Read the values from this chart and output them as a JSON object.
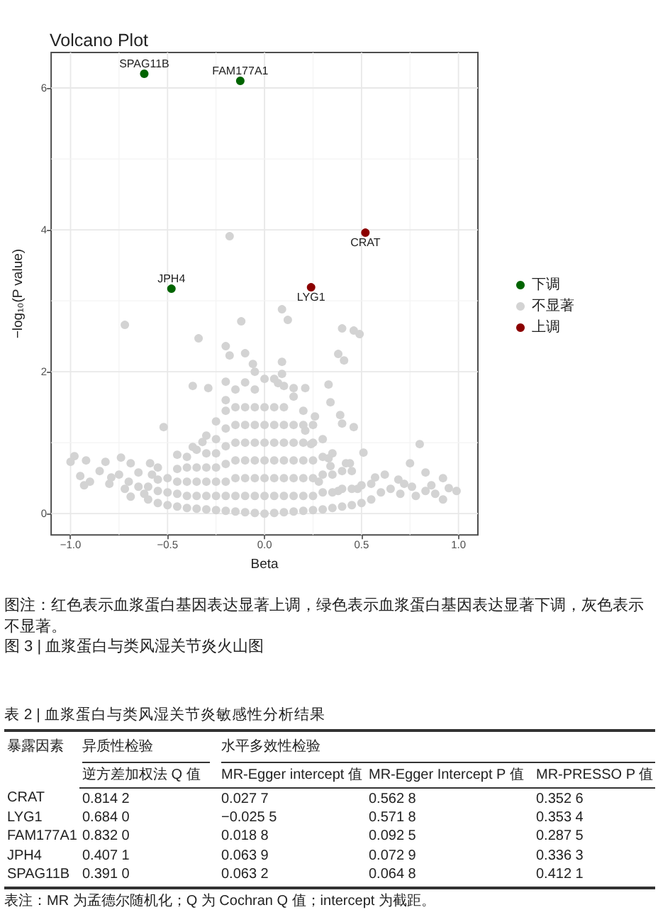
{
  "chart_data": [
    {
      "type": "scatter",
      "title": "Volcano Plot",
      "xlabel": "Beta",
      "ylabel": "−log₁₀(P value)",
      "xlim": [
        -1.1,
        1.1
      ],
      "ylim": [
        -0.3,
        6.5
      ],
      "xticks": [
        {
          "value": -1,
          "label": "−1.0"
        },
        {
          "value": -0.5,
          "label": "−0.5"
        },
        {
          "value": 0,
          "label": "0.0"
        },
        0.5,
        {
          "value": 1,
          "label": "1.0"
        }
      ],
      "yticks": [
        0,
        2,
        4,
        6
      ],
      "grid": true,
      "legend": "right",
      "marker": "circle",
      "series": [
        {
          "name": "下调",
          "color": "#006400",
          "x": [
            -0.62,
            -0.125,
            -0.48
          ],
          "values": [
            6.2,
            6.1,
            3.17
          ]
        },
        {
          "name": "不显著",
          "color": "#d3d3d3",
          "x": [
            -0.18,
            -0.72,
            -0.12,
            -0.34,
            -0.2,
            -0.18,
            -0.1,
            -0.06,
            -0.37,
            -0.29,
            -0.52,
            -0.2,
            -0.45,
            -0.37,
            -0.32,
            -0.98,
            -1.0,
            -0.92,
            -0.82,
            -0.74,
            -0.69,
            -0.95,
            -0.9,
            -0.93,
            -0.79,
            -0.59,
            -0.55,
            -0.65,
            -0.72,
            -0.69,
            -0.85,
            -0.8,
            -0.75,
            -0.7,
            -0.65,
            -0.62,
            -0.58,
            0.09,
            0.12,
            0.4,
            0.46,
            0.49,
            0.38,
            0.41,
            0.09,
            0.33,
            0.34,
            0.39,
            0.46,
            0.4,
            0.51,
            0.8,
            0.75,
            0.83,
            0.92,
            0.99,
            0.92,
            0.62,
            0.69,
            0.57,
            0.42,
            0.44,
            0.33,
            0.34,
            0.28,
            0.24,
            0.21,
            0.26,
            0.21,
            0.15,
            0.09,
            0.07,
            0.76,
            0.83,
            0.48,
            0.38,
            0.6,
            0.65,
            0.7,
            0.72,
            0.78,
            0.86,
            0.88,
            0.95,
            -0.6,
            -0.6,
            -0.55,
            -0.55,
            -0.55,
            -0.5,
            -0.5,
            -0.5,
            -0.45,
            -0.45,
            -0.45,
            -0.45,
            -0.4,
            -0.4,
            -0.4,
            -0.4,
            -0.4,
            -0.35,
            -0.35,
            -0.35,
            -0.35,
            -0.35,
            -0.3,
            -0.3,
            -0.3,
            -0.3,
            -0.3,
            -0.3,
            -0.25,
            -0.25,
            -0.25,
            -0.25,
            -0.25,
            -0.25,
            -0.25,
            -0.2,
            -0.2,
            -0.2,
            -0.2,
            -0.2,
            -0.2,
            -0.2,
            -0.2,
            -0.15,
            -0.15,
            -0.15,
            -0.15,
            -0.15,
            -0.15,
            -0.15,
            -0.15,
            -0.1,
            -0.1,
            -0.1,
            -0.1,
            -0.1,
            -0.1,
            -0.1,
            -0.1,
            -0.05,
            -0.05,
            -0.05,
            -0.05,
            -0.05,
            -0.05,
            -0.05,
            -0.05,
            -0.05,
            0,
            0,
            0,
            0,
            0,
            0,
            0,
            0,
            0.05,
            0.05,
            0.05,
            0.05,
            0.05,
            0.05,
            0.05,
            0.05,
            0.1,
            0.1,
            0.1,
            0.1,
            0.1,
            0.1,
            0.1,
            0.1,
            0.15,
            0.15,
            0.15,
            0.15,
            0.15,
            0.15,
            0.15,
            0.2,
            0.2,
            0.2,
            0.2,
            0.2,
            0.2,
            0.2,
            0.25,
            0.25,
            0.25,
            0.25,
            0.25,
            0.25,
            0.3,
            0.3,
            0.3,
            0.3,
            0.3,
            0.35,
            0.35,
            0.35,
            0.35,
            0.4,
            0.4,
            0.4,
            0.45,
            0.45,
            0.45,
            0.5,
            0.5,
            0.55,
            0.55
          ],
          "values": [
            3.91,
            2.66,
            2.71,
            2.47,
            2.36,
            2.23,
            2.26,
            2.11,
            1.8,
            1.77,
            1.22,
            1.86,
            0.83,
            0.94,
            1.01,
            0.81,
            0.73,
            0.75,
            0.73,
            0.79,
            0.71,
            0.53,
            0.45,
            0.4,
            0.51,
            0.71,
            0.65,
            0.58,
            0.35,
            0.24,
            0.6,
            0.42,
            0.55,
            0.45,
            0.38,
            0.28,
            0.55,
            2.88,
            2.73,
            2.61,
            2.58,
            2.53,
            2.25,
            2.16,
            2.14,
            1.82,
            1.57,
            1.39,
            1.22,
            1.27,
            0.86,
            0.98,
            0.71,
            0.58,
            0.5,
            0.32,
            0.2,
            0.55,
            0.48,
            0.51,
            0.71,
            0.71,
            0.78,
            0.67,
            0.45,
            0.98,
            1.17,
            1.37,
            1.77,
            1.77,
            1.97,
            1.84,
            0.38,
            0.32,
            0.35,
            0.32,
            0.3,
            0.35,
            0.28,
            0.42,
            0.25,
            0.4,
            0.28,
            0.36,
            0.2,
            0.38,
            0.15,
            0.32,
            0.48,
            0.12,
            0.3,
            0.5,
            0.1,
            0.28,
            0.45,
            0.63,
            0.08,
            0.25,
            0.45,
            0.65,
            0.8,
            0.07,
            0.25,
            0.45,
            0.65,
            0.9,
            0.06,
            0.25,
            0.45,
            0.65,
            0.85,
            1.1,
            0.05,
            0.25,
            0.45,
            0.65,
            0.85,
            1.05,
            1.3,
            0.04,
            0.25,
            0.45,
            0.7,
            0.95,
            1.2,
            1.45,
            1.6,
            0.03,
            0.25,
            0.5,
            0.75,
            1.0,
            1.25,
            1.5,
            1.75,
            0.02,
            0.25,
            0.5,
            0.75,
            1.0,
            1.25,
            1.5,
            1.85,
            0.01,
            0.25,
            0.5,
            0.75,
            1.0,
            1.25,
            1.5,
            1.75,
            2.0,
            0,
            0.25,
            0.5,
            0.75,
            1.0,
            1.25,
            1.5,
            1.9,
            0.01,
            0.25,
            0.5,
            0.75,
            1.0,
            1.25,
            1.5,
            1.9,
            0.02,
            0.25,
            0.5,
            0.75,
            1.0,
            1.25,
            1.5,
            1.8,
            0.03,
            0.25,
            0.5,
            0.75,
            1.0,
            1.25,
            1.65,
            0.04,
            0.25,
            0.5,
            0.75,
            1.0,
            1.25,
            1.45,
            0.05,
            0.25,
            0.5,
            0.75,
            1.0,
            1.25,
            0.06,
            0.3,
            0.55,
            0.8,
            1.05,
            0.08,
            0.3,
            0.55,
            0.85,
            0.1,
            0.35,
            0.6,
            0.12,
            0.35,
            0.6,
            0.15,
            0.4,
            0.2,
            0.42
          ]
        },
        {
          "name": "上调",
          "color": "#8b0000",
          "x": [
            0.52,
            0.24
          ],
          "values": [
            3.96,
            3.19
          ]
        }
      ],
      "annotations": [
        {
          "text": "SPAG11B",
          "x": -0.62,
          "y": 6.2
        },
        {
          "text": "FAM177A1",
          "x": -0.125,
          "y": 6.1
        },
        {
          "text": "JPH4",
          "x": -0.48,
          "y": 3.17
        },
        {
          "text": "CRAT",
          "x": 0.52,
          "y": 3.96
        },
        {
          "text": "LYG1",
          "x": 0.24,
          "y": 3.19
        },
        "图注：红色表示血浆蛋白基因表达显著上调，绿色表示血浆蛋白基因表达显著下调，灰色表示不显著。",
        "图 3 | 血浆蛋白与类风湿关节炎火山图"
      ]
    },
    {
      "type": "other",
      "title": "表 2 | 血浆蛋白与类风湿关节炎敏感性分析结果",
      "ylabel": "暴露因素",
      "categories": [
        "逆方差加权法 Q 值",
        "MR-Egger intercept 值",
        "MR-Egger Intercept P 值",
        "MR-PRESSO P 值"
      ],
      "y_categories": [
        "CRAT",
        "LYG1",
        "FAM177A1",
        "JPH4",
        "SPAG11B"
      ],
      "cell_labels": [
        [
          "0.814 2",
          "0.027 7",
          "0.562 8",
          "0.352 6"
        ],
        [
          "0.684 0",
          "−0.025 5",
          "0.571 8",
          "0.353 4"
        ],
        [
          "0.832 0",
          "0.018 8",
          "0.092 5",
          "0.287 5"
        ],
        [
          "0.407 1",
          "0.063 9",
          "0.072 9",
          "0.336 3"
        ],
        [
          "0.391 0",
          "0.063 2",
          "0.064 8",
          "0.412 1"
        ]
      ],
      "annotations": [
        "异质性检验",
        "水平多效性检验",
        "表注：MR 为孟德尔随机化；Q 为 Cochran Q 值；intercept 为截距。"
      ]
    }
  ]
}
